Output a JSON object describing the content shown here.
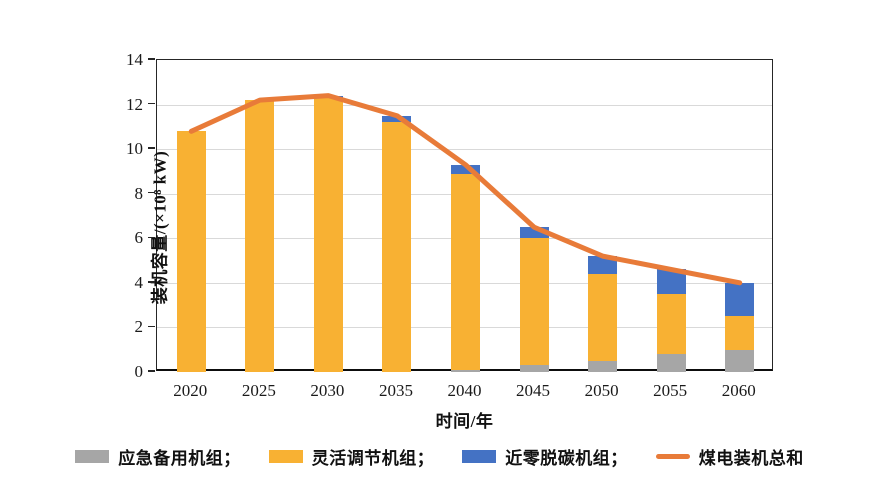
{
  "chart_data": {
    "type": "bar",
    "stacked": true,
    "title": "",
    "xlabel": "时间/年",
    "ylabel": "装机容量/(×10⁸ kW)",
    "categories": [
      "2020",
      "2025",
      "2030",
      "2035",
      "2040",
      "2045",
      "2050",
      "2055",
      "2060"
    ],
    "series": [
      {
        "name": "emergency-backup-units",
        "label": "应急备用机组；",
        "type": "bar",
        "color": "#a6a6a6",
        "values": [
          0,
          0,
          0,
          0,
          0.1,
          0.3,
          0.5,
          0.8,
          1.0
        ]
      },
      {
        "name": "flexible-regulation-units",
        "label": "灵活调节机组；",
        "type": "bar",
        "color": "#f8b133",
        "values": [
          10.8,
          12.2,
          12.3,
          11.2,
          8.8,
          5.7,
          3.9,
          2.7,
          1.5
        ]
      },
      {
        "name": "near-zero-carbon-units",
        "label": "近零脱碳机组；",
        "type": "bar",
        "color": "#4472c4",
        "values": [
          0,
          0,
          0.1,
          0.3,
          0.4,
          0.5,
          0.8,
          1.1,
          1.5
        ]
      },
      {
        "name": "coal-power-total",
        "label": "煤电装机总和",
        "type": "line",
        "color": "#e87b39",
        "values": [
          10.8,
          12.2,
          12.4,
          11.5,
          9.3,
          6.5,
          5.2,
          4.6,
          4.0
        ]
      }
    ],
    "ylim": [
      0,
      14
    ],
    "ytick_step": 2,
    "yticks": [
      0,
      2,
      4,
      6,
      8,
      10,
      12,
      14
    ],
    "grid": "horizontal",
    "gridline_color": "#d9d9d9",
    "legend_position": "bottom"
  }
}
